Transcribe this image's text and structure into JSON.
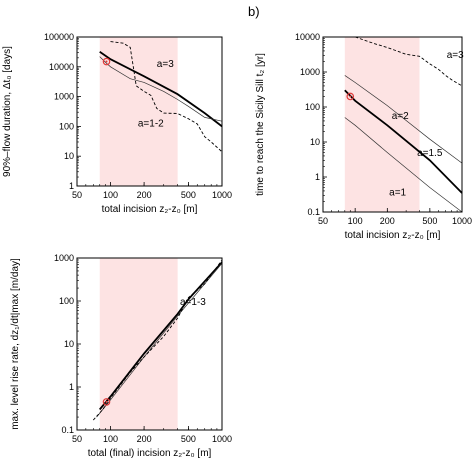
{
  "chart_data": [
    {
      "panel": "",
      "type": "line",
      "xlabel": "total incision z₂-z₀ [m]",
      "ylabel": "90%–flow duration, Δt₀ [days]",
      "xscale": "log",
      "yscale": "log",
      "xlim": [
        50,
        1000
      ],
      "ylim": [
        1,
        100000
      ],
      "xticks": [
        "50",
        "100",
        "200",
        "500",
        "1000"
      ],
      "yticks": [
        "1",
        "10",
        "100",
        "1000",
        "10000",
        "100000"
      ],
      "shaded_range": [
        80,
        400
      ],
      "shade_color": "#fde3e3",
      "marker": {
        "x": 92,
        "y": 15000,
        "color": "#e03a3a"
      },
      "annotations": [
        "a=3",
        "a=1-2"
      ],
      "series": [
        {
          "style": "thick",
          "points": [
            [
              80,
              32000
            ],
            [
              100,
              18000
            ],
            [
              200,
              4800
            ],
            [
              400,
              1200
            ],
            [
              700,
              280
            ],
            [
              1000,
              100
            ]
          ]
        },
        {
          "style": "thin",
          "points": [
            [
              80,
              22000
            ],
            [
              90,
              14000
            ],
            [
              100,
              10000
            ],
            [
              150,
              4000
            ],
            [
              200,
              3000
            ],
            [
              300,
              1500
            ],
            [
              400,
              800
            ],
            [
              500,
              470
            ],
            [
              700,
              200
            ],
            [
              1000,
              150
            ]
          ]
        },
        {
          "style": "dashed",
          "points": [
            [
              100,
              70000
            ],
            [
              130,
              62000
            ],
            [
              150,
              45000
            ],
            [
              160,
              10000
            ],
            [
              170,
              2300
            ],
            [
              200,
              1500
            ],
            [
              230,
              1100
            ],
            [
              260,
              400
            ],
            [
              300,
              280
            ],
            [
              400,
              270
            ],
            [
              500,
              180
            ],
            [
              600,
              120
            ],
            [
              700,
              45
            ],
            [
              800,
              30
            ],
            [
              1000,
              14
            ]
          ]
        }
      ]
    },
    {
      "panel": "b)",
      "type": "line",
      "xlabel": "total incision z₂-z₀ [m]",
      "ylabel": "time to reach the Sicily Sill  t₂  [yr]",
      "xscale": "log",
      "yscale": "log",
      "xlim": [
        50,
        1000
      ],
      "ylim": [
        0.1,
        10000
      ],
      "xticks": [
        "50",
        "100",
        "200",
        "500",
        "1000"
      ],
      "yticks": [
        "0.1",
        "1",
        "10",
        "100",
        "1000",
        "10000"
      ],
      "shaded_range": [
        80,
        400
      ],
      "shade_color": "#fde3e3",
      "marker": {
        "x": 90,
        "y": 200,
        "color": "#e03a3a"
      },
      "annotations": [
        "a=3",
        "a=2",
        "a=1.5",
        "a=1"
      ],
      "series": [
        {
          "style": "thick",
          "points": [
            [
              80,
              300
            ],
            [
              100,
              150
            ],
            [
              200,
              30
            ],
            [
              500,
              3
            ],
            [
              1000,
              0.35
            ]
          ]
        },
        {
          "style": "thin",
          "points": [
            [
              80,
              800
            ],
            [
              100,
              500
            ],
            [
              200,
              110
            ],
            [
              500,
              12
            ],
            [
              1000,
              2.5
            ]
          ]
        },
        {
          "style": "thin",
          "points": [
            [
              80,
              50
            ],
            [
              100,
              30
            ],
            [
              200,
              5
            ],
            [
              500,
              0.5
            ],
            [
              1000,
              0.07
            ]
          ]
        },
        {
          "style": "dashed",
          "points": [
            [
              100,
              10000
            ],
            [
              150,
              6500
            ],
            [
              200,
              5000
            ],
            [
              300,
              3200
            ],
            [
              400,
              2800
            ],
            [
              500,
              1700
            ],
            [
              600,
              1200
            ],
            [
              700,
              800
            ],
            [
              800,
              600
            ],
            [
              1000,
              400
            ]
          ]
        }
      ]
    },
    {
      "panel": "",
      "type": "line",
      "xlabel": "total (final) incision z₂-z₀ [m]",
      "ylabel": "max. level rise rate, dz₁/dt|max [m/day]",
      "xscale": "log",
      "yscale": "log",
      "xlim": [
        50,
        1000
      ],
      "ylim": [
        0.1,
        1000
      ],
      "xticks": [
        "50",
        "100",
        "200",
        "500",
        "1000"
      ],
      "yticks": [
        "0.1",
        "1",
        "10",
        "100",
        "1000"
      ],
      "shaded_range": [
        80,
        400
      ],
      "shade_color": "#fde3e3",
      "marker": {
        "x": 92,
        "y": 0.45,
        "color": "#e03a3a"
      },
      "annotations": [
        "a=1-3"
      ],
      "series": [
        {
          "style": "thick",
          "points": [
            [
              80,
              0.3
            ],
            [
              100,
              0.6
            ],
            [
              200,
              6
            ],
            [
              400,
              50
            ],
            [
              500,
              110
            ],
            [
              1000,
              800
            ]
          ]
        },
        {
          "style": "thin",
          "points": [
            [
              75,
              0.2
            ],
            [
              100,
              0.5
            ],
            [
              200,
              5
            ],
            [
              400,
              45
            ],
            [
              1000,
              750
            ]
          ]
        },
        {
          "style": "dashed",
          "points": [
            [
              70,
              0.17
            ],
            [
              85,
              0.3
            ],
            [
              100,
              0.55
            ],
            [
              150,
              2.2
            ],
            [
              200,
              5
            ],
            [
              300,
              15
            ],
            [
              400,
              40
            ],
            [
              500,
              120
            ],
            [
              700,
              250
            ],
            [
              1000,
              900
            ]
          ]
        }
      ]
    }
  ]
}
